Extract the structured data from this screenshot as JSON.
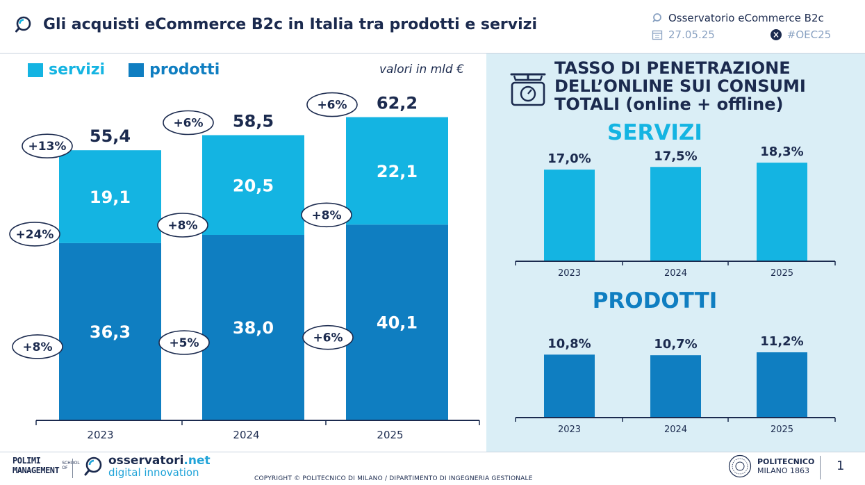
{
  "header": {
    "title": "Gli acquisti eCommerce B2c in Italia tra prodotti e servizi",
    "source": "Osservatorio eCommerce B2c",
    "date": "27.05.25",
    "hashtag": "#OEC25"
  },
  "colors": {
    "servizi": "#14b4e2",
    "prodotti": "#0f7ec1",
    "navy": "#1b2a4e",
    "panel_bg": "#daeef6"
  },
  "legend": {
    "servizi": "servizi",
    "prodotti": "prodotti"
  },
  "unit_note": "valori in mld €",
  "right_panel": {
    "title": "TASSO DI PENETRAZIONE\nDELL’ONLINE SUI CONSUMI\nTOTALI (online + offline)",
    "servizi_title": "SERVIZI",
    "prodotti_title": "PRODOTTI"
  },
  "chart_data": [
    {
      "type": "bar",
      "stacked": true,
      "unit": "mld €",
      "categories": [
        "2023",
        "2024",
        "2025"
      ],
      "series": [
        {
          "name": "prodotti",
          "values": [
            36.3,
            38.0,
            40.1
          ],
          "labels": [
            "36,3",
            "38,0",
            "40,1"
          ],
          "growth": [
            "+8%",
            "+5%",
            "+6%"
          ]
        },
        {
          "name": "servizi",
          "values": [
            19.1,
            20.5,
            22.1
          ],
          "labels": [
            "19,1",
            "20,5",
            "22,1"
          ],
          "growth": [
            "+24%",
            "+8%",
            "+8%"
          ]
        }
      ],
      "totals": [
        55.4,
        58.5,
        62.2
      ],
      "total_labels": [
        "55,4",
        "58,5",
        "62,2"
      ],
      "total_growth": [
        "+13%",
        "+6%",
        "+6%"
      ],
      "ylim": [
        0,
        70
      ]
    },
    {
      "type": "bar",
      "title": "SERVIZI",
      "categories": [
        "2023",
        "2024",
        "2025"
      ],
      "values": [
        17.0,
        17.5,
        18.3
      ],
      "labels": [
        "17,0%",
        "17,5%",
        "18,3%"
      ],
      "ylim": [
        0,
        20
      ]
    },
    {
      "type": "bar",
      "title": "PRODOTTI",
      "categories": [
        "2023",
        "2024",
        "2025"
      ],
      "values": [
        10.8,
        10.7,
        11.2
      ],
      "labels": [
        "10,8%",
        "10,7%",
        "11,2%"
      ],
      "ylim": [
        0,
        14
      ]
    }
  ],
  "footer": {
    "polimi_line1": "POLIMI",
    "polimi_line2": "MANAGEMENT",
    "polimi_small": "SCHOOL OF",
    "oss_name": "osservatori",
    "oss_tld": ".net",
    "oss_sub": "digital innovation",
    "copyright": "COPYRIGHT © POLITECNICO DI MILANO / DIPARTIMENTO DI INGEGNERIA GESTIONALE",
    "uni_name": "POLITECNICO",
    "uni_city": "MILANO 1863",
    "page": "1"
  }
}
